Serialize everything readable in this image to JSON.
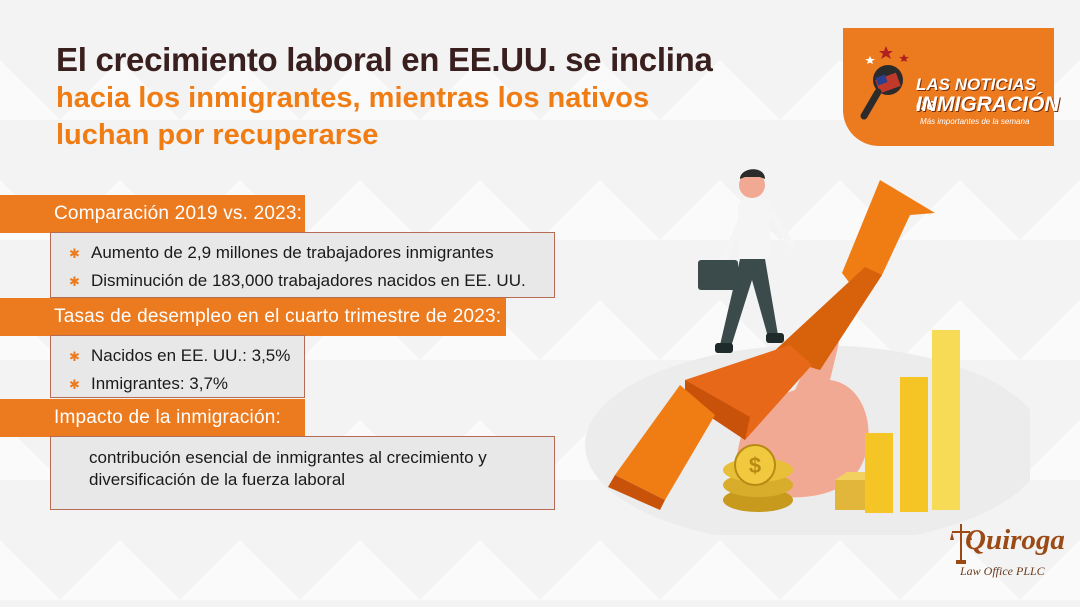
{
  "title": {
    "line1": "El crecimiento laboral en EE.UU. se inclina",
    "line2": "hacia los inmigrantes, mientras los nativos",
    "line3": "luchan por recuperarse"
  },
  "logo": {
    "line1": "LAS NOTICIAS de",
    "line2": "INMIGRACIÓN",
    "line3": "Más importantes de la semana"
  },
  "sections": [
    {
      "heading": "Comparación 2019 vs. 2023:",
      "items": [
        "Aumento de 2,9 millones de trabajadores inmigrantes",
        "Disminución de 183,000 trabajadores nacidos en EE. UU."
      ]
    },
    {
      "heading": "Tasas de desempleo en el cuarto trimestre de 2023:",
      "items": [
        "Nacidos en EE. UU.: 3,5%",
        "Inmigrantes: 3,7%"
      ]
    },
    {
      "heading": "Impacto de la inmigración:",
      "paragraph": "contribución esencial de inmigrantes al crecimiento y diversificación de la fuerza laboral"
    }
  ],
  "brand": {
    "name": "Quiroga",
    "subtitle": "Law Office PLLC"
  },
  "colors": {
    "accent": "#ec7a1f",
    "title_dark": "#3a1f1f",
    "title_orange": "#f07c14"
  },
  "icons": {
    "bullet": "star-icon",
    "microphone": "microphone-icon",
    "illustration": "growth-arrow-illustration"
  }
}
